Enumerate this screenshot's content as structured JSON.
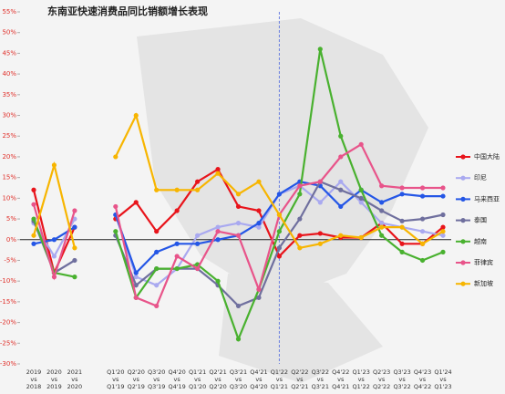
{
  "chart_data": {
    "type": "line",
    "title": "东南亚快速消费品同比销额增长表现",
    "categories": [
      "2019\nvs\n2018",
      "2020\nvs\n2019",
      "2021\nvs\n2020",
      null,
      "Q1'20\nvs\nQ1'19",
      "Q2'20\nvs\nQ2'19",
      "Q3'20\nvs\nQ3'19",
      "Q4'20\nvs\nQ4'19",
      "Q1'21\nvs\nQ1'20",
      "Q2'21\nvs\nQ2'20",
      "Q3'21\nvs\nQ3'20",
      "Q4'21\nvs\nQ4'20",
      "Q1'22\nvs\nQ1'21",
      "Q2'22\nvs\nQ2'21",
      "Q3'22\nvs\nQ3'21",
      "Q4'22\nvs\nQ4'21",
      "Q1'23\nvs\nQ1'22",
      "Q2'23\nvs\nQ2'22",
      "Q3'23\nvs\nQ3'22",
      "Q4'23\nvs\nQ4'22",
      "Q1'24\nvs\nQ1'23"
    ],
    "series": [
      {
        "name": "中国大陆",
        "color": "#e8141b",
        "values": [
          12,
          -8,
          3,
          null,
          5,
          9,
          2,
          7,
          14,
          17,
          8,
          7,
          -4,
          1,
          1.5,
          0.5,
          0.5,
          4,
          -1,
          -1,
          3
        ]
      },
      {
        "name": "印尼",
        "color": "#a9a9f0",
        "values": [
          4,
          -4,
          5,
          null,
          6,
          -9,
          -11,
          -7,
          1,
          3,
          4,
          3,
          11,
          13,
          9,
          14,
          9,
          4,
          3,
          2,
          1
        ]
      },
      {
        "name": "马来西亚",
        "color": "#2456e6",
        "values": [
          -1,
          0,
          3,
          null,
          6,
          -8,
          -3,
          -1,
          -1,
          0,
          1,
          4,
          11,
          14,
          13,
          8,
          12,
          9,
          11,
          10.5,
          10.5
        ]
      },
      {
        "name": "泰国",
        "color": "#6f6f9e",
        "values": [
          4.5,
          -8,
          -5,
          null,
          1,
          -11,
          -7,
          -7,
          -7,
          -11,
          -16,
          -14,
          -2,
          5,
          14,
          12,
          10,
          7,
          4.5,
          5,
          6
        ]
      },
      {
        "name": "越南",
        "color": "#49b12f",
        "values": [
          5,
          -8,
          -9,
          null,
          2,
          -14,
          -7,
          -7,
          -6,
          -10,
          -24,
          -12,
          2,
          11,
          46,
          25,
          12,
          1,
          -3,
          -5,
          -3
        ]
      },
      {
        "name": "菲律宾",
        "color": "#e8548a",
        "values": [
          8.5,
          -9,
          7,
          null,
          8,
          -14,
          -16,
          -4,
          -7,
          2,
          1,
          -12,
          6,
          13,
          14,
          20,
          23,
          13,
          12.5,
          12.5,
          12.5
        ]
      },
      {
        "name": "新加坡",
        "color": "#f7b500",
        "values": [
          1,
          18,
          -2,
          null,
          20,
          30,
          12,
          12,
          12,
          16,
          11,
          14,
          6,
          -2,
          -1,
          1,
          0.5,
          3,
          3,
          -1,
          2
        ]
      }
    ],
    "ylim": [
      -30,
      55
    ],
    "yticks": [
      {
        "value": -30,
        "label": "-30%"
      },
      {
        "value": -25,
        "label": "-25%"
      },
      {
        "value": -20,
        "label": "-20%"
      },
      {
        "value": -15,
        "label": "-15%"
      },
      {
        "value": -10,
        "label": "-10%"
      },
      {
        "value": -5,
        "label": "-5%"
      },
      {
        "value": 0,
        "label": "0%"
      },
      {
        "value": 5,
        "label": "5%"
      },
      {
        "value": 10,
        "label": "10%"
      },
      {
        "value": 15,
        "label": "15%"
      },
      {
        "value": 20,
        "label": "20%"
      },
      {
        "value": 25,
        "label": "25%"
      },
      {
        "value": 30,
        "label": "30%"
      },
      {
        "value": 35,
        "label": "35%"
      },
      {
        "value": 40,
        "label": "40%"
      },
      {
        "value": 45,
        "label": "45%"
      },
      {
        "value": 50,
        "label": "50%"
      },
      {
        "value": 55,
        "label": "55%"
      }
    ],
    "legend": "right"
  }
}
